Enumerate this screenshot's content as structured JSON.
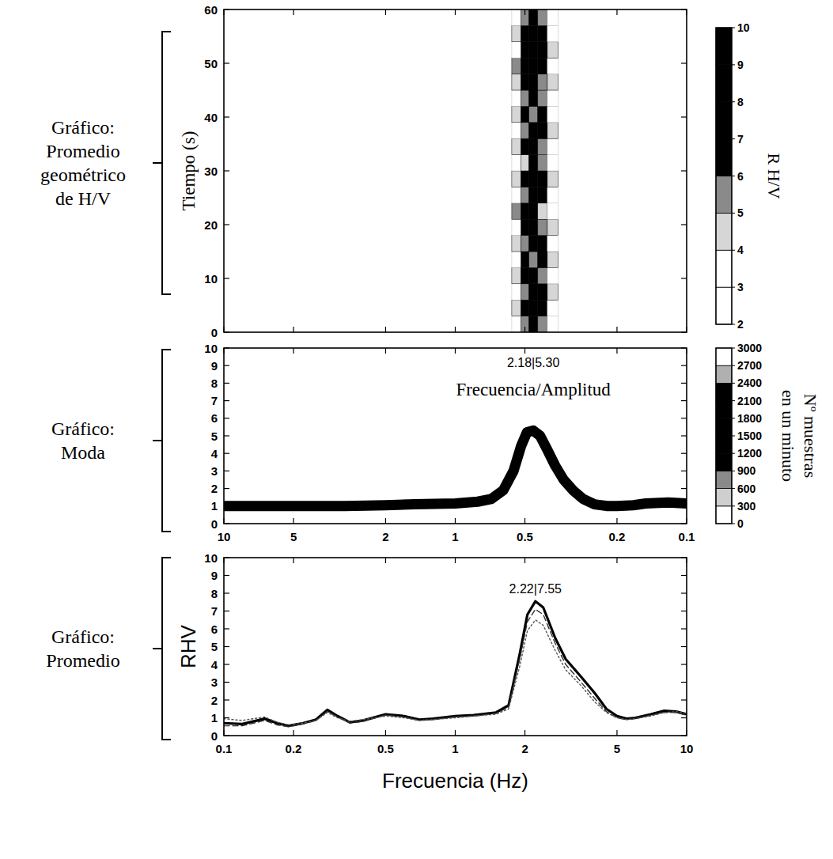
{
  "chart_data": [
    {
      "type": "heatmap",
      "panel_label": [
        "Gráfico:",
        "Promedio",
        "geométrico",
        "de H/V"
      ],
      "ylabel": "Tiempo (s)",
      "log": "x",
      "tick_labels": "y",
      "xlim": [
        10,
        0.1
      ],
      "ylim": [
        0,
        60
      ],
      "xticks": [
        10,
        5,
        2,
        1,
        0.5,
        0.2,
        0.1
      ],
      "yticks": [
        0,
        10,
        20,
        30,
        40,
        50,
        60
      ],
      "x_bins": [
        0.57,
        0.52,
        0.48,
        0.44,
        0.4,
        0.36
      ],
      "y_bins": [
        0,
        3,
        6,
        9,
        12,
        15,
        18,
        21,
        24,
        27,
        30,
        33,
        36,
        39,
        42,
        45,
        48,
        51,
        54,
        57,
        60
      ],
      "cells": [
        [
          3,
          5,
          7,
          5,
          3
        ],
        [
          4,
          6,
          8,
          6,
          3
        ],
        [
          3,
          5,
          6,
          7,
          4
        ],
        [
          4,
          7,
          8,
          5,
          3
        ],
        [
          3,
          6,
          5,
          6,
          4
        ],
        [
          4,
          5,
          7,
          6,
          3
        ],
        [
          3,
          6,
          8,
          5,
          4
        ],
        [
          5,
          7,
          6,
          4,
          3
        ],
        [
          3,
          5,
          7,
          6,
          3
        ],
        [
          4,
          6,
          8,
          6,
          4
        ],
        [
          3,
          4,
          6,
          5,
          3
        ],
        [
          4,
          7,
          6,
          5,
          3
        ],
        [
          3,
          5,
          7,
          6,
          4
        ],
        [
          4,
          6,
          5,
          7,
          3
        ],
        [
          3,
          5,
          6,
          5,
          3
        ],
        [
          4,
          6,
          7,
          5,
          4
        ],
        [
          5,
          7,
          8,
          6,
          3
        ],
        [
          3,
          6,
          6,
          7,
          4
        ],
        [
          4,
          7,
          8,
          6,
          3
        ],
        [
          3,
          5,
          6,
          5,
          3
        ]
      ],
      "colorbar": {
        "label": [
          "R H/V"
        ],
        "range": [
          2,
          10
        ],
        "ticks": [
          2,
          3,
          4,
          5,
          6,
          7,
          8,
          9,
          10
        ]
      }
    },
    {
      "type": "line",
      "panel_label": [
        "Gráfico:",
        "Moda"
      ],
      "annotations": [
        "2.18|5.30",
        "Frecuencia/Amplitud"
      ],
      "log": "x",
      "xlim": [
        10,
        0.1
      ],
      "ylim": [
        0,
        10
      ],
      "xticks": [
        10,
        5,
        2,
        1,
        0.5,
        0.2,
        0.1
      ],
      "yticks": [
        0,
        1,
        2,
        3,
        4,
        5,
        6,
        7,
        8,
        9,
        10
      ],
      "x": [
        10,
        7,
        5,
        3,
        2,
        1.5,
        1,
        0.8,
        0.7,
        0.62,
        0.56,
        0.52,
        0.49,
        0.46,
        0.43,
        0.4,
        0.37,
        0.34,
        0.31,
        0.28,
        0.25,
        0.22,
        0.2,
        0.17,
        0.15,
        0.12,
        0.1
      ],
      "series": [
        {
          "color": "#000000",
          "line_style": "solid",
          "values": [
            1.0,
            1.0,
            1.0,
            1.0,
            1.05,
            1.1,
            1.15,
            1.25,
            1.4,
            1.9,
            3.0,
            4.4,
            5.2,
            5.3,
            5.0,
            4.2,
            3.3,
            2.5,
            1.9,
            1.4,
            1.1,
            1.0,
            1.0,
            1.05,
            1.15,
            1.2,
            1.15
          ]
        }
      ],
      "colorbar": {
        "label": [
          "Nº muestras",
          "en un minuto"
        ],
        "range": [
          0,
          3000
        ],
        "ticks": [
          0,
          300,
          600,
          900,
          1200,
          1500,
          1800,
          2100,
          2400,
          2700,
          3000
        ]
      }
    },
    {
      "type": "line",
      "panel_label": [
        "Gráfico:",
        "Promedio"
      ],
      "xlabel": "Frecuencia (Hz)",
      "ylabel": "RHV",
      "annotations": [
        "2.22|7.55"
      ],
      "log": "x",
      "xlim": [
        0.1,
        10
      ],
      "ylim": [
        0,
        10
      ],
      "xticks": [
        0.1,
        0.2,
        0.5,
        1,
        2,
        5,
        10
      ],
      "yticks": [
        0,
        1,
        2,
        3,
        4,
        5,
        6,
        7,
        8,
        9,
        10
      ],
      "x": [
        0.1,
        0.12,
        0.15,
        0.17,
        0.19,
        0.22,
        0.25,
        0.28,
        0.31,
        0.35,
        0.4,
        0.5,
        0.6,
        0.7,
        0.8,
        1,
        1.2,
        1.5,
        1.7,
        1.9,
        2.05,
        2.22,
        2.4,
        2.7,
        3,
        3.5,
        4,
        4.5,
        5,
        5.5,
        6,
        7,
        8,
        9,
        10
      ],
      "series": [
        {
          "color": "#000000",
          "line_style": "solid",
          "values": [
            0.7,
            0.65,
            0.95,
            0.7,
            0.55,
            0.7,
            0.9,
            1.45,
            1.1,
            0.75,
            0.85,
            1.2,
            1.1,
            0.9,
            0.95,
            1.1,
            1.15,
            1.3,
            1.7,
            4.6,
            6.8,
            7.55,
            7.2,
            5.5,
            4.3,
            3.3,
            2.4,
            1.5,
            1.1,
            0.95,
            1.0,
            1.2,
            1.4,
            1.35,
            1.2
          ]
        },
        {
          "color": "#333333",
          "line_style": "dashed",
          "values": [
            0.55,
            0.55,
            0.85,
            0.6,
            0.5,
            0.65,
            0.85,
            1.35,
            1.05,
            0.7,
            0.8,
            1.15,
            1.05,
            0.85,
            0.9,
            1.05,
            1.1,
            1.25,
            1.6,
            4.3,
            6.4,
            7.1,
            6.8,
            5.2,
            4.0,
            3.0,
            2.1,
            1.35,
            1.0,
            0.9,
            0.95,
            1.15,
            1.3,
            1.3,
            1.15
          ]
        },
        {
          "color": "#555555",
          "line_style": "dotted",
          "values": [
            0.95,
            0.85,
            1.05,
            0.75,
            0.6,
            0.7,
            0.85,
            1.3,
            1.0,
            0.8,
            0.9,
            1.1,
            1.0,
            0.85,
            0.9,
            1.0,
            1.1,
            1.2,
            1.5,
            3.9,
            5.9,
            6.5,
            6.2,
            4.8,
            3.7,
            2.8,
            1.9,
            1.3,
            1.0,
            0.9,
            0.95,
            1.1,
            1.3,
            1.35,
            1.25
          ]
        }
      ]
    }
  ]
}
